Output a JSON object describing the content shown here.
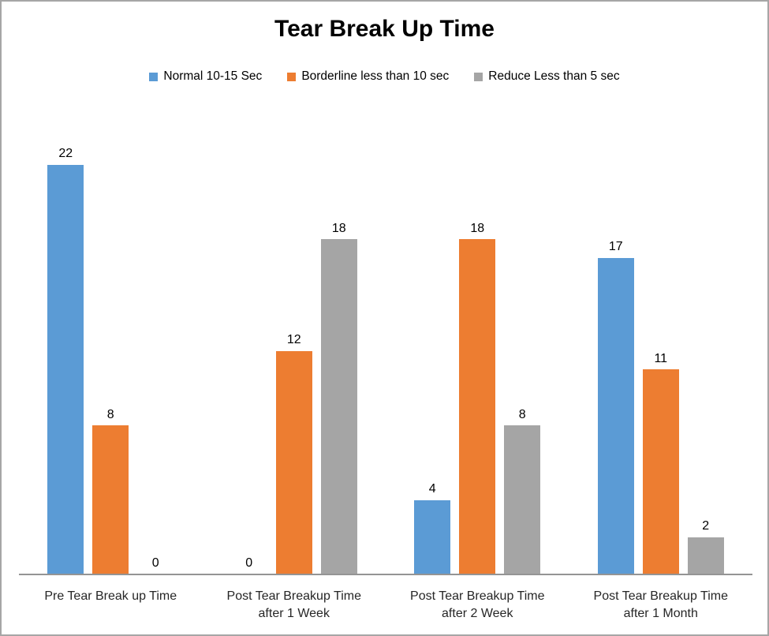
{
  "chart": {
    "title": "Tear Break Up Time"
  },
  "chart_data": {
    "type": "bar",
    "title": "Tear Break Up Time",
    "categories": [
      "Pre Tear Break up Time",
      "Post Tear Breakup Time after 1 Week",
      "Post Tear Breakup Time after 2 Week",
      "Post Tear Breakup Time after 1 Month"
    ],
    "series": [
      {
        "name": "Normal 10-15 Sec",
        "color": "#5B9BD5",
        "values": [
          22,
          0,
          4,
          17
        ]
      },
      {
        "name": "Borderline less than 10 sec",
        "color": "#ED7D31",
        "values": [
          8,
          12,
          18,
          11
        ]
      },
      {
        "name": "Reduce Less than 5 sec",
        "color": "#A5A5A5",
        "values": [
          0,
          18,
          8,
          2
        ]
      }
    ],
    "ylim": [
      0,
      22
    ],
    "gridlines": false,
    "y_axis_visible": false,
    "data_labels": true,
    "legend_position": "top"
  },
  "style_colors": {
    "frame_border": "#A6A6A6",
    "axis_line": "#949494",
    "title_text": "#000000",
    "data_label_text": "#000000",
    "category_label_text": "#262626"
  }
}
